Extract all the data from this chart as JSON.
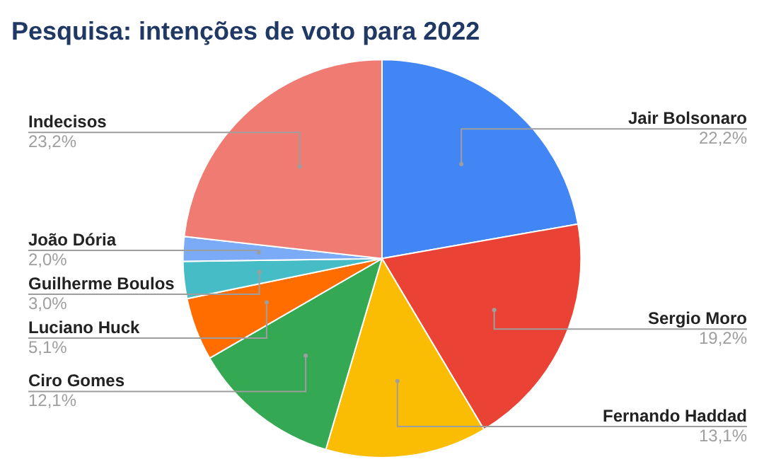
{
  "chart_data": {
    "type": "pie",
    "title": "Pesquisa: intenções de voto para 2022",
    "categories": [
      "Jair Bolsonaro",
      "Sergio Moro",
      "Fernando Haddad",
      "Ciro Gomes",
      "Luciano Huck",
      "Guilherme Boulos",
      "João Dória",
      "Indecisos"
    ],
    "values": [
      22.2,
      19.2,
      13.1,
      12.1,
      5.1,
      3.0,
      2.0,
      23.2
    ],
    "value_labels": [
      "22,2%",
      "19,2%",
      "13,1%",
      "12,1%",
      "5,1%",
      "3,0%",
      "2,0%",
      "23,2%"
    ],
    "colors": [
      "#4285f4",
      "#ea4335",
      "#fbbc04",
      "#34a853",
      "#ff6d01",
      "#46bdc6",
      "#7baaf7",
      "#f07b72"
    ],
    "legend": false
  }
}
